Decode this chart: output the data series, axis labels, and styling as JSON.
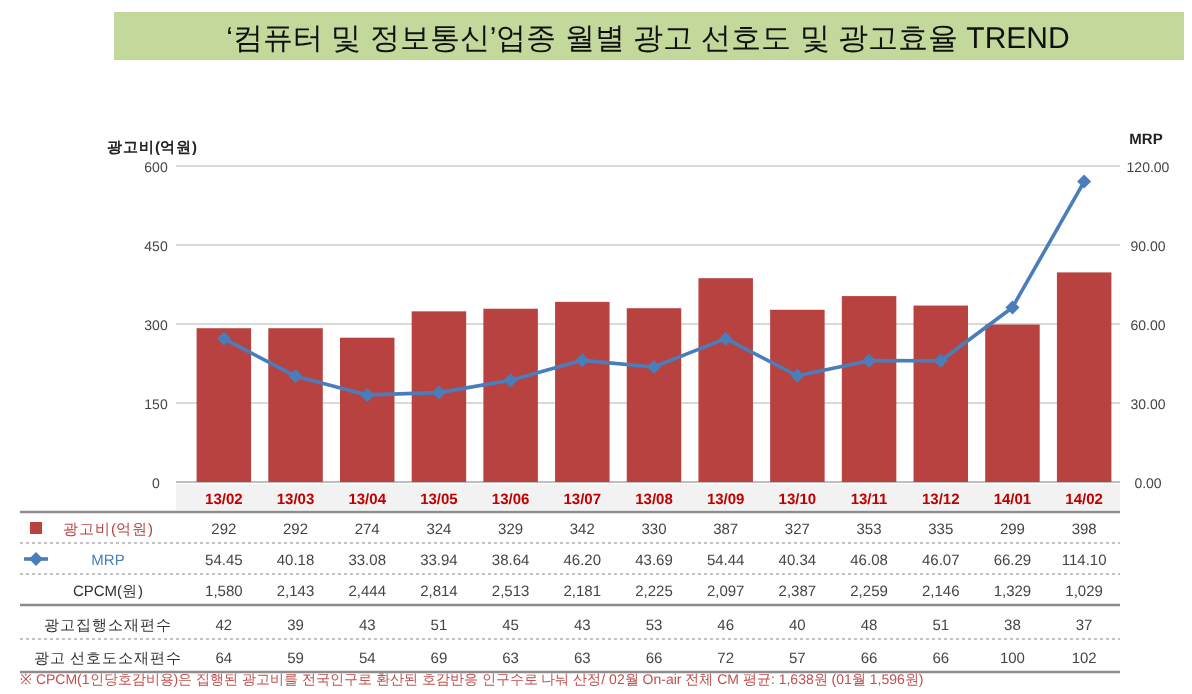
{
  "chart_data": {
    "type": "bar",
    "title": "‘컴퓨터 및 정보통신’업종 월별 광고 선호도 및 광고효율 TREND",
    "ylabel": "광고비(억원)",
    "y2label": "MRP",
    "categories": [
      "13/02",
      "13/03",
      "13/04",
      "13/05",
      "13/06",
      "13/07",
      "13/08",
      "13/09",
      "13/10",
      "13/11",
      "13/12",
      "14/01",
      "14/02"
    ],
    "series": [
      {
        "name": "광고비(억원)",
        "color": "#b8423f",
        "values": [
          292,
          292,
          274,
          324,
          329,
          342,
          330,
          387,
          327,
          353,
          335,
          299,
          398
        ],
        "value_labels": [
          "292",
          "292",
          "274",
          "324",
          "329",
          "342",
          "330",
          "387",
          "327",
          "353",
          "335",
          "299",
          "398"
        ]
      },
      {
        "name": "MRP",
        "type": "line",
        "axis": "y2",
        "color": "#4a7ebb",
        "marker": "diamond",
        "values": [
          54.45,
          40.18,
          33.08,
          33.94,
          38.64,
          46.2,
          43.69,
          54.44,
          40.34,
          46.08,
          46.07,
          66.29,
          114.1
        ],
        "value_labels": [
          "54.45",
          "40.18",
          "33.08",
          "33.94",
          "38.64",
          "46.20",
          "43.69",
          "54.44",
          "40.34",
          "46.08",
          "46.07",
          "66.29",
          "114.10"
        ]
      }
    ],
    "ylim": [
      0,
      600
    ],
    "yticks": [
      0,
      150,
      300,
      450,
      600
    ],
    "y2lim": [
      0,
      120
    ],
    "y2ticks": [
      {
        "value": 0,
        "label": "0.00"
      },
      {
        "value": 30,
        "label": "30.00"
      },
      {
        "value": 60,
        "label": "60.00"
      },
      {
        "value": 90,
        "label": "90.00"
      },
      {
        "value": 120,
        "label": "120.00"
      }
    ],
    "grid": "y",
    "annotations": [
      "CPCM(원)",
      "1,580",
      "2,143",
      "2,444",
      "2,814",
      "2,513",
      "2,181",
      "2,225",
      "2,097",
      "2,387",
      "2,259",
      "2,146",
      "1,329",
      "1,029",
      "광고집행소재편수",
      "42",
      "39",
      "43",
      "51",
      "45",
      "43",
      "53",
      "46",
      "40",
      "48",
      "51",
      "38",
      "37",
      "광고 선호도소재편수",
      "64",
      "59",
      "54",
      "69",
      "63",
      "63",
      "66",
      "72",
      "57",
      "66",
      "66",
      "100",
      "102",
      "※ CPCM(1인당호감비용)은 집행된 광고비를 전국인구로 환산된 호감반응 인구수로 나눠 산정/ 02월 On-air 전체 CM 평균: 1,638원 (01월 1,596원)"
    ]
  }
}
